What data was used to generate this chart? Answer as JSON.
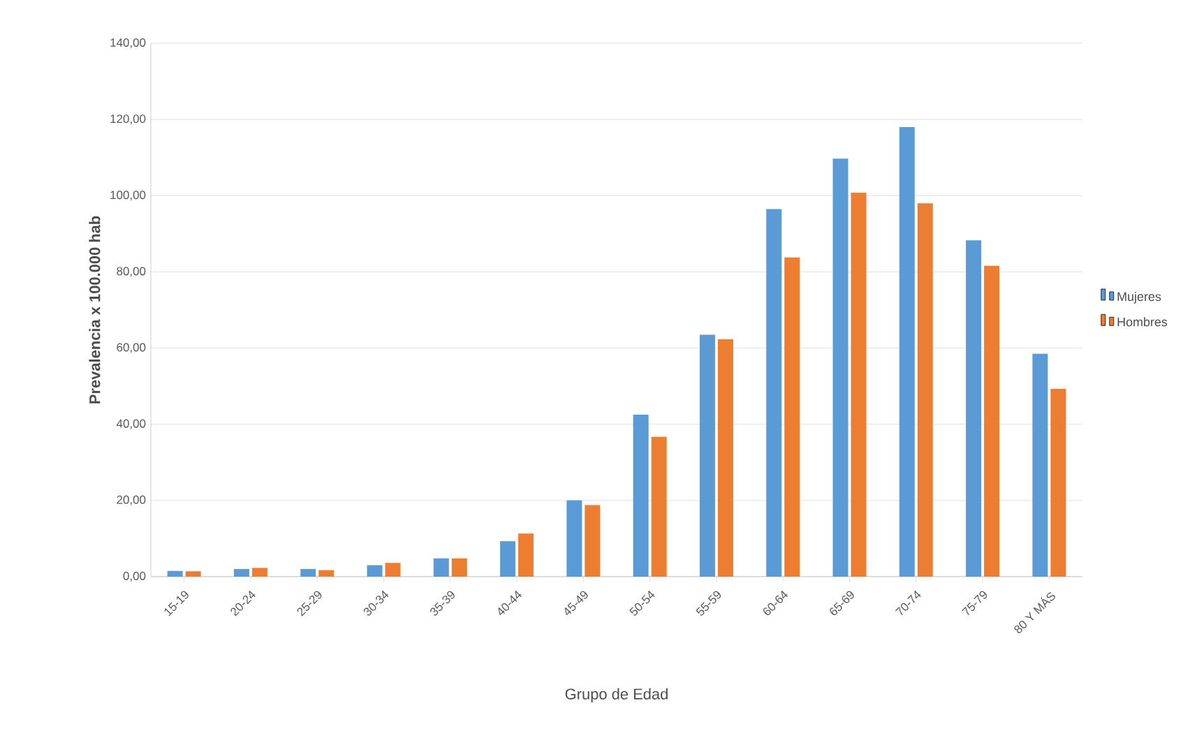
{
  "chart_data": {
    "type": "bar",
    "xlabel": "Grupo de Edad",
    "ylabel": "Prevalencia x 100.000 hab",
    "categories": [
      "15-19",
      "20-24",
      "25-29",
      "30-34",
      "35-39",
      "40-44",
      "45-49",
      "50-54",
      "55-59",
      "60-64",
      "65-69",
      "70-74",
      "75-79",
      "80 Y MÁS"
    ],
    "series": [
      {
        "name": "Mujeres",
        "color": "#5b9bd5",
        "values": [
          1.5,
          2.0,
          2.0,
          3.0,
          4.8,
          9.3,
          20.0,
          42.5,
          63.5,
          96.5,
          109.7,
          118.0,
          88.3,
          58.5
        ]
      },
      {
        "name": "Hombres",
        "color": "#ed7d31",
        "values": [
          1.4,
          2.3,
          1.7,
          3.6,
          4.8,
          11.3,
          18.8,
          36.7,
          62.3,
          83.8,
          100.8,
          98.0,
          81.6,
          49.3
        ]
      }
    ],
    "ylim": [
      0,
      140
    ],
    "yticks": [
      {
        "value": 0,
        "label": "0,00"
      },
      {
        "value": 20,
        "label": "20,00"
      },
      {
        "value": 40,
        "label": "40,00"
      },
      {
        "value": 60,
        "label": "60,00"
      },
      {
        "value": 80,
        "label": "80,00"
      },
      {
        "value": 100,
        "label": "100,00"
      },
      {
        "value": 120,
        "label": "120,00"
      },
      {
        "value": 140,
        "label": "140,00"
      }
    ],
    "grid": "y",
    "legend": "right"
  }
}
